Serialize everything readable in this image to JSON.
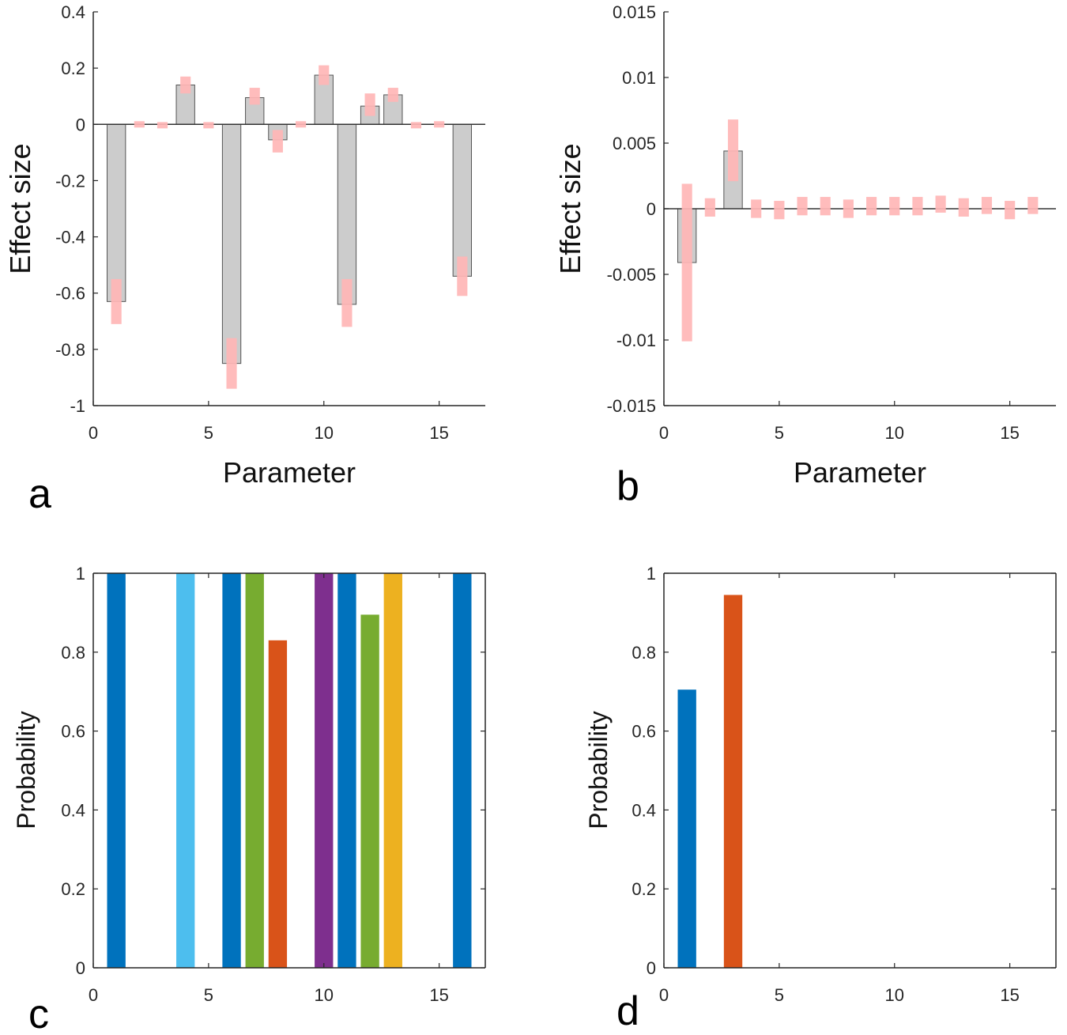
{
  "chart_data": [
    {
      "panel": "a",
      "type": "bar",
      "x": [
        1,
        2,
        3,
        4,
        5,
        6,
        7,
        8,
        9,
        10,
        11,
        12,
        13,
        14,
        15,
        16
      ],
      "values": [
        -0.63,
        0,
        0,
        0.14,
        0,
        -0.85,
        0.095,
        -0.055,
        0,
        0.175,
        -0.64,
        0.065,
        0.105,
        0,
        0,
        -0.54
      ],
      "intervals": [
        [
          -0.71,
          -0.55
        ],
        [
          -0.005,
          0.005
        ],
        [
          -0.008,
          0.002
        ],
        [
          0.11,
          0.17
        ],
        [
          -0.008,
          0.002
        ],
        [
          -0.94,
          -0.76
        ],
        [
          0.07,
          0.13
        ],
        [
          -0.1,
          -0.02
        ],
        [
          -0.005,
          0.005
        ],
        [
          0.14,
          0.21
        ],
        [
          -0.72,
          -0.55
        ],
        [
          0.03,
          0.11
        ],
        [
          0.08,
          0.13
        ],
        [
          -0.008,
          0.002
        ],
        [
          -0.005,
          0.005
        ],
        [
          -0.61,
          -0.47
        ]
      ],
      "bar_color": "#cccccc",
      "interval_color": "#ffb6b6",
      "xlabel": "Parameter",
      "ylabel": "Effect size",
      "xlim": [
        0,
        17
      ],
      "ylim": [
        -1,
        0.4
      ],
      "xticks": [
        0,
        5,
        10,
        15
      ],
      "xtick_labels": [
        "0",
        "5",
        "10",
        "15"
      ],
      "yticks": [
        0.4,
        0.2,
        0,
        -0.2,
        -0.4,
        -0.6,
        -0.8,
        -1
      ],
      "ytick_labels": [
        "0.4",
        "0.2",
        "0",
        "-0.2",
        "-0.4",
        "-0.6",
        "-0.8",
        "-1"
      ],
      "grid": false
    },
    {
      "panel": "b",
      "type": "bar",
      "x": [
        1,
        2,
        3,
        4,
        5,
        6,
        7,
        8,
        9,
        10,
        11,
        12,
        13,
        14,
        15,
        16
      ],
      "values": [
        -0.0041,
        0,
        0.0044,
        0,
        0,
        0,
        0,
        0,
        0,
        0,
        0,
        0,
        0,
        0,
        0,
        0
      ],
      "intervals": [
        [
          -0.0101,
          0.0019
        ],
        [
          -0.0006,
          0.0008
        ],
        [
          0.0021,
          0.0068
        ],
        [
          -0.0007,
          0.0007
        ],
        [
          -0.0008,
          0.0006
        ],
        [
          -0.0005,
          0.0009
        ],
        [
          -0.0005,
          0.0009
        ],
        [
          -0.0007,
          0.0007
        ],
        [
          -0.0005,
          0.0009
        ],
        [
          -0.0005,
          0.0009
        ],
        [
          -0.0005,
          0.0009
        ],
        [
          -0.0003,
          0.001
        ],
        [
          -0.0006,
          0.0008
        ],
        [
          -0.0004,
          0.0009
        ],
        [
          -0.0008,
          0.0006
        ],
        [
          -0.0004,
          0.0009
        ]
      ],
      "bar_color": "#cccccc",
      "interval_color": "#ffb6b6",
      "xlabel": "Parameter",
      "ylabel": "Effect size",
      "xlim": [
        0,
        17
      ],
      "ylim": [
        -0.015,
        0.015
      ],
      "xticks": [
        0,
        5,
        10,
        15
      ],
      "xtick_labels": [
        "0",
        "5",
        "10",
        "15"
      ],
      "yticks": [
        0.015,
        0.01,
        0.005,
        0,
        -0.005,
        -0.01,
        -0.015
      ],
      "ytick_labels": [
        "0.015",
        "0.01",
        "0.005",
        "0",
        "-0.005",
        "-0.01",
        "-0.015"
      ],
      "grid": false
    },
    {
      "panel": "c",
      "type": "bar",
      "x": [
        1,
        4,
        6,
        7,
        8,
        10,
        11,
        12,
        13,
        16
      ],
      "values": [
        1,
        1,
        1,
        1,
        0.83,
        1,
        1,
        0.895,
        1,
        1
      ],
      "colors": [
        "#0072bd",
        "#4dbeee",
        "#0072bd",
        "#77ac30",
        "#d95319",
        "#7e2f8e",
        "#0072bd",
        "#77ac30",
        "#edb120",
        "#0072bd"
      ],
      "xlabel": "",
      "ylabel": "Probability",
      "xlim": [
        0,
        17
      ],
      "ylim": [
        0,
        1
      ],
      "xticks": [
        0,
        5,
        10,
        15
      ],
      "xtick_labels": [
        "0",
        "5",
        "10",
        "15"
      ],
      "yticks": [
        1,
        0.8,
        0.6,
        0.4,
        0.2,
        0
      ],
      "ytick_labels": [
        "1",
        "0.8",
        "0.6",
        "0.4",
        "0.2",
        "0"
      ],
      "grid": false
    },
    {
      "panel": "d",
      "type": "bar",
      "x": [
        1,
        3
      ],
      "values": [
        0.705,
        0.945
      ],
      "colors": [
        "#0072bd",
        "#d95319"
      ],
      "xlabel": "",
      "ylabel": "Probability",
      "xlim": [
        0,
        17
      ],
      "ylim": [
        0,
        1
      ],
      "xticks": [
        0,
        5,
        10,
        15
      ],
      "xtick_labels": [
        "0",
        "5",
        "10",
        "15"
      ],
      "yticks": [
        1,
        0.8,
        0.6,
        0.4,
        0.2,
        0
      ],
      "ytick_labels": [
        "1",
        "0.8",
        "0.6",
        "0.4",
        "0.2",
        "0"
      ],
      "grid": false
    }
  ]
}
